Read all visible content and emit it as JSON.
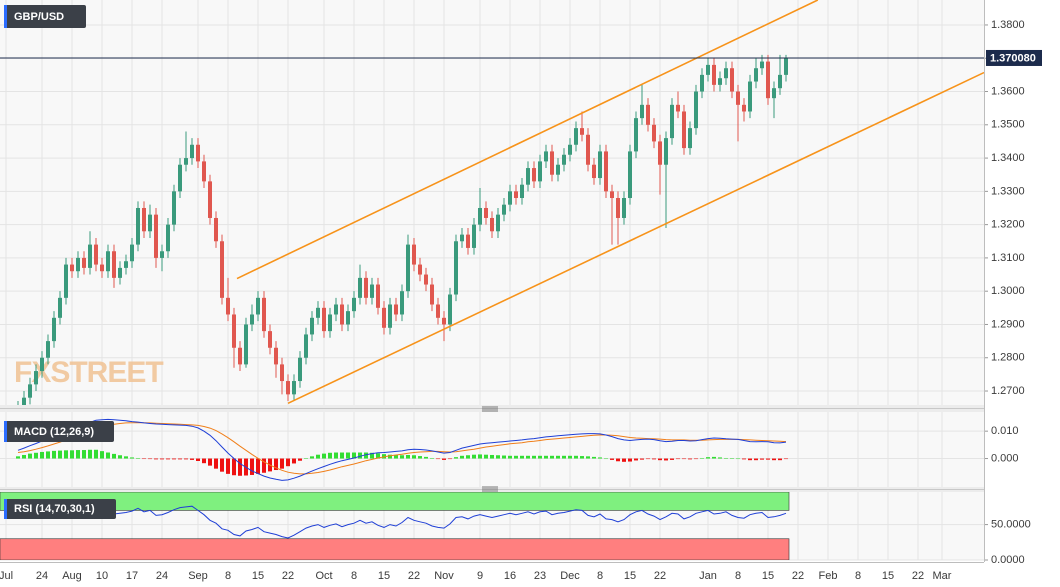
{
  "chart_data": {
    "type": "candlestick",
    "title": "GBP/USD",
    "watermark": "FXSTREET",
    "up_color": "#3a9a7c",
    "down_color": "#e0574f",
    "open": [
      1.263,
      1.265,
      1.268,
      1.272,
      1.276,
      1.28,
      1.285,
      1.292,
      1.298,
      1.308,
      1.306,
      1.31,
      1.307,
      1.314,
      1.308,
      1.306,
      1.312,
      1.304,
      1.307,
      1.309,
      1.314,
      1.325,
      1.318,
      1.323,
      1.31,
      1.312,
      1.32,
      1.33,
      1.338,
      1.34,
      1.344,
      1.339,
      1.333,
      1.322,
      1.315,
      1.298,
      1.293,
      1.283,
      1.278,
      1.29,
      1.293,
      1.298,
      1.288,
      1.283,
      1.278,
      1.273,
      1.269,
      1.273,
      1.28,
      1.287,
      1.292,
      1.295,
      1.288,
      1.293,
      1.296,
      1.29,
      1.294,
      1.298,
      1.304,
      1.298,
      1.302,
      1.295,
      1.289,
      1.296,
      1.293,
      1.3,
      1.314,
      1.308,
      1.305,
      1.302,
      1.296,
      1.292,
      1.29,
      1.299,
      1.315,
      1.317,
      1.313,
      1.32,
      1.325,
      1.322,
      1.318,
      1.323,
      1.326,
      1.33,
      1.328,
      1.332,
      1.337,
      1.333,
      1.339,
      1.342,
      1.335,
      1.338,
      1.341,
      1.344,
      1.349,
      1.347,
      1.338,
      1.334,
      1.342,
      1.33,
      1.328,
      1.322,
      1.328,
      1.342,
      1.352,
      1.356,
      1.35,
      1.345,
      1.338,
      1.346,
      1.356,
      1.354,
      1.343,
      1.349,
      1.36,
      1.365,
      1.368,
      1.362,
      1.364,
      1.367,
      1.36,
      1.356,
      1.354,
      1.363,
      1.367,
      1.369,
      1.358,
      1.361,
      1.365
    ],
    "high": [
      1.267,
      1.27,
      1.274,
      1.278,
      1.282,
      1.287,
      1.294,
      1.3,
      1.31,
      1.31,
      1.312,
      1.312,
      1.318,
      1.316,
      1.31,
      1.314,
      1.314,
      1.309,
      1.311,
      1.316,
      1.327,
      1.327,
      1.326,
      1.325,
      1.314,
      1.322,
      1.332,
      1.34,
      1.348,
      1.346,
      1.346,
      1.341,
      1.335,
      1.324,
      1.317,
      1.304,
      1.295,
      1.285,
      1.292,
      1.296,
      1.3,
      1.3,
      1.29,
      1.285,
      1.28,
      1.275,
      1.275,
      1.282,
      1.289,
      1.294,
      1.297,
      1.297,
      1.295,
      1.298,
      1.298,
      1.296,
      1.3,
      1.308,
      1.306,
      1.304,
      1.304,
      1.297,
      1.298,
      1.298,
      1.302,
      1.317,
      1.316,
      1.31,
      1.307,
      1.304,
      1.298,
      1.294,
      1.301,
      1.317,
      1.319,
      1.319,
      1.322,
      1.331,
      1.327,
      1.324,
      1.325,
      1.328,
      1.332,
      1.332,
      1.334,
      1.339,
      1.339,
      1.341,
      1.344,
      1.344,
      1.34,
      1.343,
      1.346,
      1.351,
      1.354,
      1.349,
      1.34,
      1.344,
      1.344,
      1.332,
      1.33,
      1.33,
      1.344,
      1.354,
      1.362,
      1.358,
      1.352,
      1.347,
      1.348,
      1.358,
      1.36,
      1.356,
      1.351,
      1.362,
      1.367,
      1.37,
      1.37,
      1.366,
      1.369,
      1.369,
      1.362,
      1.358,
      1.365,
      1.37,
      1.371,
      1.371,
      1.363,
      1.371,
      1.371
    ],
    "low": [
      1.261,
      1.263,
      1.266,
      1.27,
      1.274,
      1.278,
      1.283,
      1.29,
      1.296,
      1.304,
      1.304,
      1.305,
      1.305,
      1.306,
      1.304,
      1.304,
      1.301,
      1.302,
      1.305,
      1.307,
      1.312,
      1.316,
      1.316,
      1.307,
      1.306,
      1.31,
      1.318,
      1.328,
      1.336,
      1.338,
      1.337,
      1.331,
      1.32,
      1.313,
      1.296,
      1.291,
      1.277,
      1.276,
      1.277,
      1.288,
      1.291,
      1.286,
      1.281,
      1.274,
      1.269,
      1.267,
      1.267,
      1.271,
      1.278,
      1.285,
      1.29,
      1.286,
      1.286,
      1.291,
      1.288,
      1.288,
      1.292,
      1.296,
      1.296,
      1.296,
      1.293,
      1.287,
      1.287,
      1.291,
      1.291,
      1.298,
      1.306,
      1.303,
      1.3,
      1.294,
      1.29,
      1.285,
      1.288,
      1.297,
      1.313,
      1.311,
      1.311,
      1.318,
      1.32,
      1.316,
      1.316,
      1.321,
      1.324,
      1.326,
      1.326,
      1.33,
      1.331,
      1.331,
      1.337,
      1.333,
      1.333,
      1.336,
      1.339,
      1.342,
      1.345,
      1.336,
      1.332,
      1.332,
      1.328,
      1.314,
      1.314,
      1.32,
      1.326,
      1.34,
      1.35,
      1.348,
      1.343,
      1.329,
      1.319,
      1.344,
      1.352,
      1.341,
      1.341,
      1.347,
      1.358,
      1.363,
      1.36,
      1.36,
      1.362,
      1.358,
      1.345,
      1.351,
      1.352,
      1.361,
      1.365,
      1.356,
      1.352,
      1.359,
      1.363
    ],
    "close": [
      1.265,
      1.268,
      1.272,
      1.276,
      1.28,
      1.285,
      1.292,
      1.298,
      1.308,
      1.306,
      1.31,
      1.307,
      1.314,
      1.308,
      1.306,
      1.312,
      1.304,
      1.307,
      1.309,
      1.314,
      1.325,
      1.318,
      1.323,
      1.31,
      1.312,
      1.32,
      1.33,
      1.338,
      1.34,
      1.344,
      1.339,
      1.333,
      1.322,
      1.315,
      1.298,
      1.293,
      1.283,
      1.278,
      1.29,
      1.293,
      1.298,
      1.288,
      1.283,
      1.278,
      1.273,
      1.269,
      1.273,
      1.28,
      1.287,
      1.292,
      1.295,
      1.288,
      1.293,
      1.296,
      1.29,
      1.294,
      1.298,
      1.304,
      1.298,
      1.302,
      1.295,
      1.289,
      1.296,
      1.293,
      1.3,
      1.314,
      1.308,
      1.305,
      1.302,
      1.296,
      1.292,
      1.29,
      1.299,
      1.315,
      1.317,
      1.313,
      1.32,
      1.325,
      1.322,
      1.318,
      1.323,
      1.326,
      1.33,
      1.328,
      1.332,
      1.337,
      1.333,
      1.339,
      1.342,
      1.335,
      1.338,
      1.341,
      1.344,
      1.349,
      1.347,
      1.338,
      1.334,
      1.342,
      1.33,
      1.328,
      1.322,
      1.328,
      1.342,
      1.352,
      1.356,
      1.35,
      1.345,
      1.338,
      1.346,
      1.356,
      1.354,
      1.343,
      1.349,
      1.36,
      1.365,
      1.368,
      1.362,
      1.364,
      1.367,
      1.36,
      1.356,
      1.354,
      1.363,
      1.367,
      1.369,
      1.358,
      1.361,
      1.365,
      1.37
    ],
    "xlim": [
      -3,
      161
    ],
    "xticks": [
      {
        "value": -2,
        "label": "Jul"
      },
      {
        "value": 4,
        "label": "24"
      },
      {
        "value": 9,
        "label": "Aug"
      },
      {
        "value": 14,
        "label": "10"
      },
      {
        "value": 19,
        "label": "17"
      },
      {
        "value": 24,
        "label": "24"
      },
      {
        "value": 30,
        "label": "Sep"
      },
      {
        "value": 35,
        "label": "8"
      },
      {
        "value": 40,
        "label": "15"
      },
      {
        "value": 45,
        "label": "22"
      },
      {
        "value": 51,
        "label": "Oct"
      },
      {
        "value": 56,
        "label": "8"
      },
      {
        "value": 61,
        "label": "15"
      },
      {
        "value": 66,
        "label": "22"
      },
      {
        "value": 71,
        "label": "Nov"
      },
      {
        "value": 77,
        "label": "9"
      },
      {
        "value": 82,
        "label": "16"
      },
      {
        "value": 87,
        "label": "23"
      },
      {
        "value": 92,
        "label": "Dec"
      },
      {
        "value": 97,
        "label": "8"
      },
      {
        "value": 102,
        "label": "15"
      },
      {
        "value": 107,
        "label": "22"
      },
      {
        "value": 115,
        "label": "Jan"
      },
      {
        "value": 120,
        "label": "8"
      },
      {
        "value": 125,
        "label": "15"
      },
      {
        "value": 130,
        "label": "22"
      },
      {
        "value": 135,
        "label": "Feb"
      },
      {
        "value": 140,
        "label": "8"
      },
      {
        "value": 145,
        "label": "15"
      },
      {
        "value": 150,
        "label": "22"
      },
      {
        "value": 154,
        "label": "Mar"
      }
    ],
    "ylim": [
      1.2658,
      1.3875
    ],
    "yticks": [
      {
        "value": 1.27,
        "label": "1.2700"
      },
      {
        "value": 1.28,
        "label": "1.2800"
      },
      {
        "value": 1.29,
        "label": "1.2900"
      },
      {
        "value": 1.3,
        "label": "1.3000"
      },
      {
        "value": 1.31,
        "label": "1.3100"
      },
      {
        "value": 1.32,
        "label": "1.3200"
      },
      {
        "value": 1.33,
        "label": "1.3300"
      },
      {
        "value": 1.34,
        "label": "1.3400"
      },
      {
        "value": 1.35,
        "label": "1.3500"
      },
      {
        "value": 1.36,
        "label": "1.3600"
      },
      {
        "value": 1.37,
        "label": "1.3700"
      },
      {
        "value": 1.38,
        "label": "1.3800"
      }
    ],
    "grid": true,
    "last_price": {
      "value": 1.37008,
      "label": "1.370080"
    },
    "last_price_color": "#1c2b4c",
    "channel": {
      "color": "#f7931a",
      "lines": [
        {
          "x": [
            36.5,
            133.3
          ],
          "y": [
            1.3038,
            1.3875
          ]
        },
        {
          "x": [
            45,
            161
          ],
          "y": [
            1.2663,
            1.3657
          ]
        }
      ]
    },
    "macd": {
      "label": "MACD (12,26,9)",
      "ylim": [
        -0.0104,
        0.017
      ],
      "yticks": [
        {
          "value": 0,
          "label": "0.000"
        },
        {
          "value": 0.01,
          "label": "0.010"
        }
      ],
      "macd_color": "#1f3fd6",
      "signal_color": "#f07f1a",
      "pos_color": "#33dd33",
      "neg_color": "#ee1111",
      "macd": [
        0.003,
        0.0038,
        0.0047,
        0.0055,
        0.0064,
        0.0072,
        0.0081,
        0.0089,
        0.0098,
        0.0106,
        0.0115,
        0.0123,
        0.0132,
        0.014,
        0.0142,
        0.0143,
        0.0142,
        0.014,
        0.0138,
        0.0135,
        0.0133,
        0.013,
        0.0128,
        0.0126,
        0.0125,
        0.0124,
        0.0123,
        0.0122,
        0.0121,
        0.0118,
        0.0112,
        0.01,
        0.0085,
        0.0065,
        0.0042,
        0.002,
        0.0,
        -0.0018,
        -0.0032,
        -0.0045,
        -0.0055,
        -0.0064,
        -0.0071,
        -0.0076,
        -0.008,
        -0.0078,
        -0.0072,
        -0.0064,
        -0.0055,
        -0.0046,
        -0.0037,
        -0.0029,
        -0.0021,
        -0.0014,
        -0.0008,
        -0.0003,
        0.0002,
        0.0008,
        0.0014,
        0.0018,
        0.0021,
        0.0022,
        0.0024,
        0.0026,
        0.0028,
        0.0032,
        0.0034,
        0.0033,
        0.0031,
        0.0028,
        0.0024,
        0.002,
        0.0022,
        0.003,
        0.0038,
        0.0043,
        0.0048,
        0.0053,
        0.0056,
        0.0058,
        0.006,
        0.0062,
        0.0064,
        0.0066,
        0.0068,
        0.0071,
        0.0073,
        0.0076,
        0.0079,
        0.0081,
        0.0083,
        0.0085,
        0.0087,
        0.0089,
        0.009,
        0.0091,
        0.0091,
        0.009,
        0.0086,
        0.008,
        0.0073,
        0.0068,
        0.0066,
        0.0068,
        0.007,
        0.0071,
        0.0069,
        0.0065,
        0.0062,
        0.0063,
        0.0066,
        0.0066,
        0.0064,
        0.0065,
        0.0069,
        0.0073,
        0.0075,
        0.0074,
        0.0072,
        0.0071,
        0.007,
        0.0066,
        0.0062,
        0.0061,
        0.0062,
        0.0061,
        0.0058,
        0.0057,
        0.006
      ],
      "signal": [
        0.0022,
        0.0025,
        0.0029,
        0.0034,
        0.004,
        0.0046,
        0.0053,
        0.006,
        0.0068,
        0.0076,
        0.0084,
        0.0092,
        0.01,
        0.0108,
        0.0115,
        0.0121,
        0.0125,
        0.0128,
        0.013,
        0.0131,
        0.0131,
        0.0131,
        0.013,
        0.0129,
        0.0128,
        0.0127,
        0.0126,
        0.0125,
        0.0124,
        0.0123,
        0.0121,
        0.0117,
        0.0111,
        0.0102,
        0.009,
        0.0076,
        0.0061,
        0.0045,
        0.003,
        0.0015,
        0.0001,
        -0.0012,
        -0.0024,
        -0.0034,
        -0.0043,
        -0.005,
        -0.0054,
        -0.0056,
        -0.0056,
        -0.0054,
        -0.0051,
        -0.0047,
        -0.0042,
        -0.0036,
        -0.003,
        -0.0025,
        -0.002,
        -0.0014,
        -0.0008,
        -0.0003,
        0.0002,
        0.0006,
        0.001,
        0.0013,
        0.0016,
        0.0019,
        0.0022,
        0.0024,
        0.0025,
        0.0026,
        0.0026,
        0.0025,
        0.0024,
        0.0025,
        0.0028,
        0.0031,
        0.0034,
        0.0038,
        0.0042,
        0.0045,
        0.0048,
        0.0051,
        0.0054,
        0.0056,
        0.0058,
        0.0061,
        0.0063,
        0.0066,
        0.0069,
        0.0071,
        0.0073,
        0.0075,
        0.0077,
        0.0079,
        0.0081,
        0.0083,
        0.0085,
        0.0086,
        0.0086,
        0.0085,
        0.0083,
        0.008,
        0.0077,
        0.0075,
        0.0074,
        0.0073,
        0.0072,
        0.0071,
        0.0069,
        0.0068,
        0.0068,
        0.0068,
        0.0067,
        0.0067,
        0.0067,
        0.0068,
        0.0069,
        0.007,
        0.007,
        0.007,
        0.007,
        0.0069,
        0.0068,
        0.0067,
        0.0066,
        0.0065,
        0.0064,
        0.0063,
        0.0062
      ],
      "histogram": [
        0.0008,
        0.0013,
        0.0018,
        0.0021,
        0.0024,
        0.0026,
        0.0028,
        0.0029,
        0.003,
        0.003,
        0.0031,
        0.0031,
        0.0032,
        0.0032,
        0.0027,
        0.0022,
        0.0017,
        0.0012,
        0.0008,
        0.0004,
        0.0002,
        -0.0001,
        -0.0002,
        -0.0003,
        -0.0003,
        -0.0003,
        -0.0003,
        -0.0003,
        -0.0003,
        -0.0005,
        -0.0009,
        -0.0017,
        -0.0026,
        -0.0037,
        -0.0048,
        -0.0056,
        -0.0061,
        -0.0063,
        -0.0062,
        -0.006,
        -0.0056,
        -0.0052,
        -0.0047,
        -0.0042,
        -0.0037,
        -0.0028,
        -0.0018,
        -0.0008,
        0.0001,
        0.0008,
        0.0014,
        0.0018,
        0.0021,
        0.0022,
        0.0022,
        0.0022,
        0.0022,
        0.0022,
        0.0022,
        0.0021,
        0.0019,
        0.0016,
        0.0014,
        0.0013,
        0.0012,
        0.0013,
        0.0012,
        0.0009,
        0.0006,
        0.0002,
        -0.0002,
        -0.0005,
        -0.0002,
        0.0005,
        0.001,
        0.0012,
        0.0014,
        0.0015,
        0.0014,
        0.0013,
        0.0012,
        0.0011,
        0.001,
        0.001,
        0.001,
        0.001,
        0.001,
        0.001,
        0.001,
        0.001,
        0.001,
        0.001,
        0.001,
        0.001,
        0.0009,
        0.0008,
        0.0006,
        0.0004,
        0.0,
        -0.0005,
        -0.001,
        -0.0012,
        -0.0011,
        -0.0007,
        -0.0004,
        -0.0002,
        -0.0003,
        -0.0006,
        -0.0007,
        -0.0005,
        -0.0002,
        -0.0002,
        -0.0003,
        -0.0002,
        0.0002,
        0.0005,
        0.0006,
        0.0004,
        0.0002,
        0.0001,
        0.0,
        -0.0003,
        -0.0006,
        -0.0006,
        -0.0004,
        -0.0004,
        -0.0006,
        -0.0006,
        -0.0002
      ]
    },
    "rsi": {
      "label": "RSI (14,70,30,1)",
      "ylim": [
        0,
        96
      ],
      "yticks": [
        {
          "value": 0,
          "label": "0.0000"
        },
        {
          "value": 50,
          "label": "50.0000"
        }
      ],
      "upper": 70,
      "lower": 30,
      "color": "#1f3fd6",
      "upper_color": "#7ff07f",
      "lower_color": "#ff7f7f",
      "values": [
        62,
        64,
        66,
        67,
        68,
        69,
        70,
        72,
        74,
        70,
        71,
        68,
        72,
        68,
        67,
        69,
        65,
        66,
        67,
        69,
        73,
        68,
        70,
        63,
        64,
        67,
        71,
        74,
        75,
        76,
        70,
        64,
        56,
        52,
        44,
        42,
        36,
        34,
        41,
        43,
        46,
        40,
        38,
        36,
        33,
        31,
        35,
        40,
        45,
        48,
        50,
        46,
        49,
        51,
        47,
        50,
        52,
        56,
        52,
        54,
        49,
        46,
        50,
        48,
        53,
        60,
        56,
        54,
        52,
        48,
        46,
        45,
        51,
        60,
        61,
        58,
        62,
        64,
        62,
        60,
        62,
        64,
        66,
        64,
        66,
        68,
        65,
        68,
        69,
        64,
        66,
        67,
        69,
        71,
        70,
        63,
        61,
        65,
        58,
        57,
        54,
        57,
        64,
        68,
        70,
        65,
        62,
        57,
        61,
        66,
        65,
        58,
        61,
        66,
        68,
        70,
        65,
        66,
        68,
        63,
        60,
        59,
        64,
        66,
        67,
        60,
        61,
        63,
        66
      ]
    }
  }
}
